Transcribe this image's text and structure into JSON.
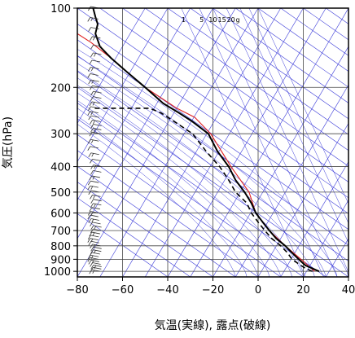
{
  "chart_data": {
    "type": "line",
    "title": "",
    "xlabel": "気温(実線), 露点(破線)",
    "ylabel": "気圧(hPa)",
    "xlim": [
      -80,
      40
    ],
    "ylim": [
      1050,
      100
    ],
    "y_scale": "log",
    "x_ticks": [
      -80,
      -60,
      -40,
      -20,
      0,
      20,
      40
    ],
    "x_tick_labels": [
      "−80",
      "−60",
      "−40",
      "−20",
      "0",
      "20",
      "40"
    ],
    "y_ticks": [
      100,
      200,
      300,
      400,
      500,
      600,
      700,
      800,
      900,
      1000
    ],
    "y_tick_labels": [
      "100",
      "200",
      "300",
      "400",
      "500",
      "600",
      "700",
      "800",
      "900",
      "1000"
    ],
    "grid": true,
    "mixing_ratio_labels": [
      "1",
      "5",
      "10",
      "15",
      "20",
      "g"
    ],
    "colors": {
      "temperature": "#000000",
      "dewpoint": "#000000",
      "reference": "#e02020",
      "background_lines": "#3a3ad8",
      "wind_barbs": "#333333"
    },
    "series": [
      {
        "role": "temperature",
        "style": "solid",
        "points": [
          [
            27,
            1000
          ],
          [
            24,
            975
          ],
          [
            21,
            950
          ],
          [
            18,
            900
          ],
          [
            15,
            850
          ],
          [
            12,
            800
          ],
          [
            8,
            750
          ],
          [
            5,
            700
          ],
          [
            2,
            650
          ],
          [
            -1,
            600
          ],
          [
            -3,
            550
          ],
          [
            -6,
            500
          ],
          [
            -10,
            450
          ],
          [
            -13,
            400
          ],
          [
            -18,
            350
          ],
          [
            -22,
            300
          ],
          [
            -29,
            270
          ],
          [
            -35,
            250
          ],
          [
            -42,
            230
          ],
          [
            -50,
            200
          ],
          [
            -58,
            175
          ],
          [
            -65,
            155
          ],
          [
            -70,
            140
          ],
          [
            -72,
            125
          ],
          [
            -71,
            115
          ],
          [
            -72,
            108
          ],
          [
            -73,
            100
          ]
        ]
      },
      {
        "role": "dewpoint",
        "style": "dashed",
        "points": [
          [
            24,
            1000
          ],
          [
            21,
            975
          ],
          [
            19,
            950
          ],
          [
            15,
            900
          ],
          [
            13,
            850
          ],
          [
            10,
            800
          ],
          [
            6,
            750
          ],
          [
            3,
            700
          ],
          [
            0,
            650
          ],
          [
            -3,
            600
          ],
          [
            -5,
            550
          ],
          [
            -10,
            500
          ],
          [
            -13,
            450
          ],
          [
            -17,
            400
          ],
          [
            -23,
            350
          ],
          [
            -29,
            300
          ],
          [
            -37,
            270
          ],
          [
            -43,
            250
          ],
          [
            -48,
            240
          ],
          [
            -73,
            240
          ]
        ]
      },
      {
        "role": "reference",
        "style": "solid",
        "points": [
          [
            25,
            1000
          ],
          [
            19,
            900
          ],
          [
            12,
            800
          ],
          [
            5,
            700
          ],
          [
            -1,
            600
          ],
          [
            -4,
            500
          ],
          [
            -12,
            400
          ],
          [
            -21,
            300
          ],
          [
            -28,
            260
          ],
          [
            -36,
            240
          ],
          [
            -50,
            200
          ],
          [
            -58,
            175
          ],
          [
            -65,
            155
          ],
          [
            -74,
            135
          ],
          [
            -80,
            125
          ]
        ]
      }
    ],
    "wind_barb_pressures": [
      1000,
      980,
      960,
      940,
      920,
      900,
      880,
      860,
      840,
      820,
      800,
      780,
      760,
      740,
      720,
      700,
      680,
      660,
      640,
      620,
      600,
      580,
      560,
      540,
      520,
      500,
      480,
      460,
      440,
      420,
      400,
      380,
      360,
      340,
      320,
      300,
      290,
      280,
      270,
      260,
      250,
      240,
      230,
      220,
      210,
      200,
      190,
      180,
      170,
      160,
      150,
      140,
      130,
      120,
      110,
      100
    ]
  }
}
